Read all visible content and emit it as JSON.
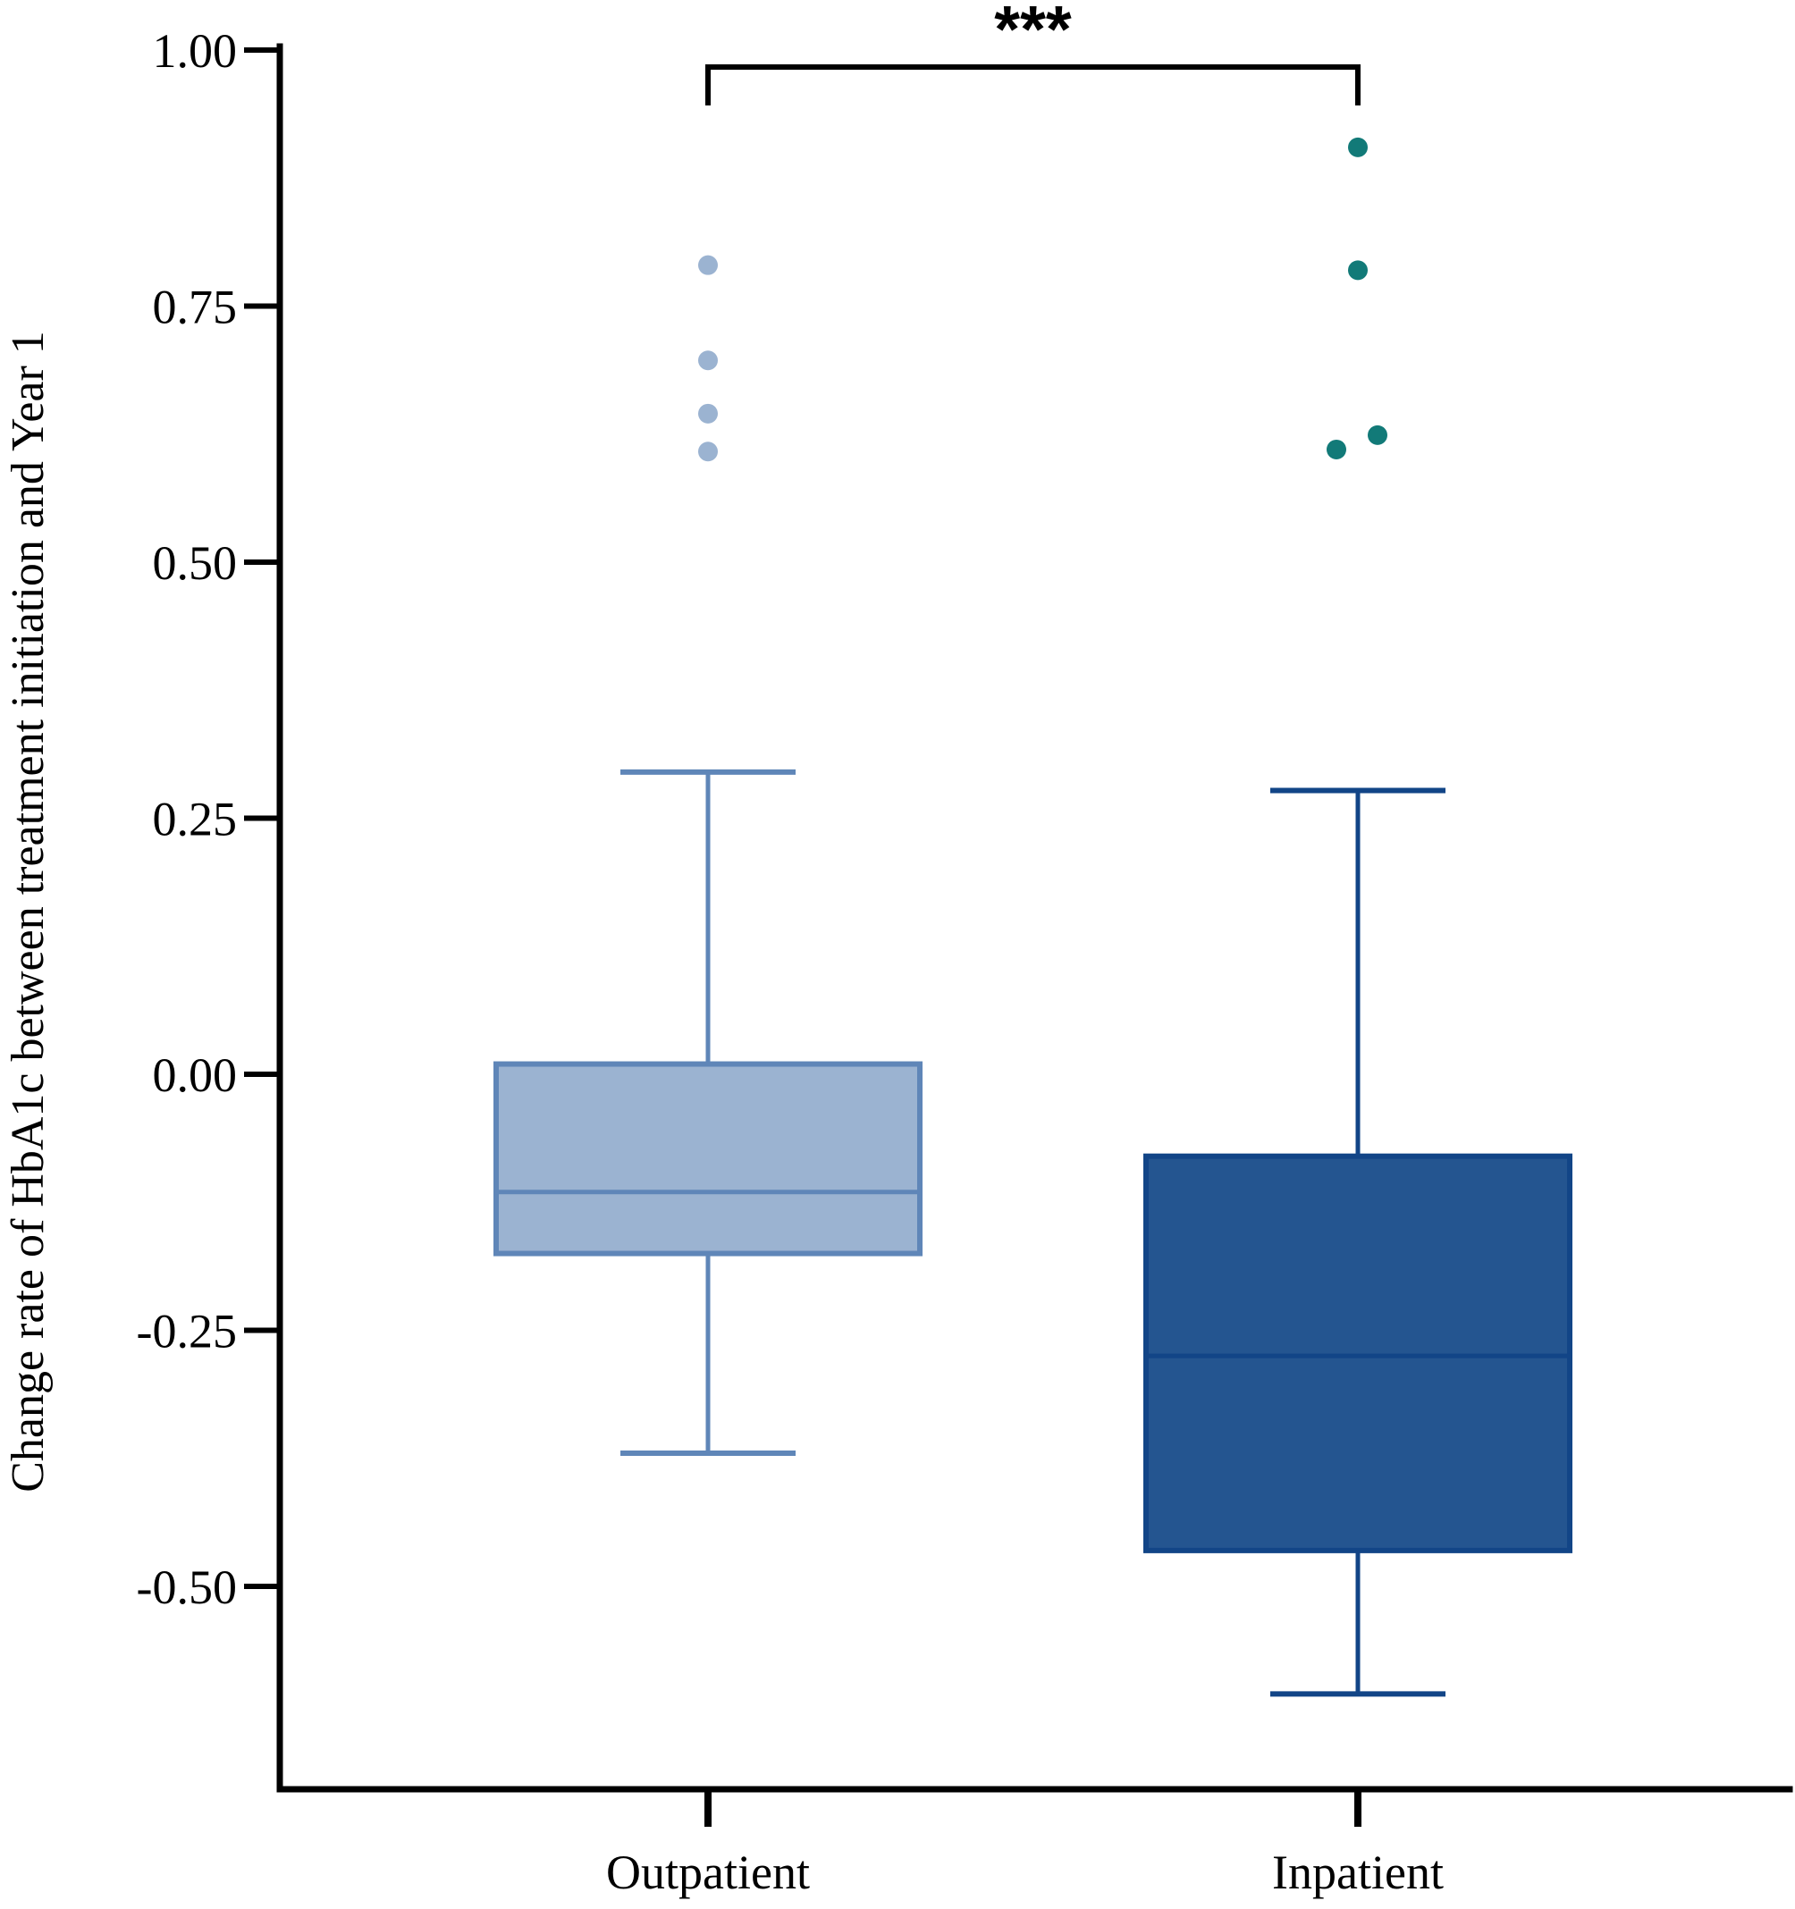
{
  "chart_data": {
    "type": "box",
    "ylabel": "Change rate of HbA1c between treatment initiation and Year 1",
    "xlabel": "",
    "ylim": [
      -0.72,
      1.0
    ],
    "yticks": [
      1.0,
      0.75,
      0.5,
      0.25,
      0.0,
      -0.25,
      -0.5
    ],
    "ytick_labels": [
      "1.00",
      "0.75",
      "0.50",
      "0.25",
      "0.00",
      "-0.25",
      "-0.50"
    ],
    "categories": [
      "Outpatient",
      "Inpatient"
    ],
    "groups": [
      {
        "category": "Outpatient",
        "whisker_low": -0.37,
        "q1": -0.175,
        "median": -0.115,
        "q3": 0.01,
        "whisker_high": 0.295,
        "outliers": [
          0.79,
          0.697,
          0.645,
          0.608
        ],
        "box_fill": "#9bb3d1",
        "box_stroke": "#5f86b8",
        "outlier_color": "#9bb3d1"
      },
      {
        "category": "Inpatient",
        "whisker_low": -0.605,
        "q1": -0.465,
        "median": -0.275,
        "q3": -0.08,
        "whisker_high": 0.277,
        "outliers": [
          0.905,
          0.785,
          0.61,
          0.624
        ],
        "box_fill": "#245590",
        "box_stroke": "#124587",
        "outlier_color": "#127a78"
      }
    ],
    "significance": {
      "between": [
        "Outpatient",
        "Inpatient"
      ],
      "label": "***"
    },
    "grid": false,
    "legend": "none"
  }
}
